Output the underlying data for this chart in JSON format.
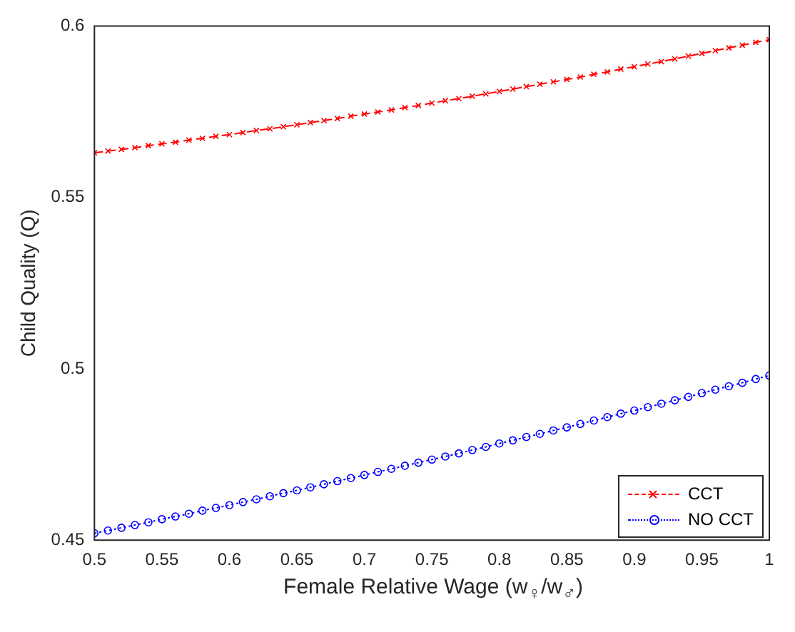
{
  "chart_data": {
    "type": "line",
    "xlabel": "Female Relative Wage (w$_{♀}$/w$_{♂}$)",
    "ylabel": "Child Quality (Q)",
    "x": [
      0.5,
      0.51,
      0.52,
      0.53,
      0.54,
      0.55,
      0.56,
      0.57,
      0.58,
      0.59,
      0.6,
      0.61,
      0.62,
      0.63,
      0.64,
      0.65,
      0.66,
      0.67,
      0.68,
      0.69,
      0.7,
      0.71,
      0.72,
      0.73,
      0.74,
      0.75,
      0.76,
      0.77,
      0.78,
      0.79,
      0.8,
      0.81,
      0.82,
      0.83,
      0.84,
      0.85,
      0.86,
      0.87,
      0.88,
      0.89,
      0.9,
      0.91,
      0.92,
      0.93,
      0.94,
      0.95,
      0.96,
      0.97,
      0.98,
      0.99,
      1
    ],
    "series": [
      {
        "name": "CCT",
        "color": "#ff0000",
        "marker": "cross",
        "line_style": "dashed",
        "values": [
          0.563,
          0.5635,
          0.564,
          0.5645,
          0.5651,
          0.5656,
          0.5661,
          0.5667,
          0.5672,
          0.5678,
          0.5683,
          0.5689,
          0.5695,
          0.57,
          0.5706,
          0.5712,
          0.5718,
          0.5724,
          0.573,
          0.5737,
          0.5743,
          0.5749,
          0.5755,
          0.5762,
          0.5768,
          0.5775,
          0.5782,
          0.5788,
          0.5795,
          0.5802,
          0.5809,
          0.5816,
          0.5823,
          0.583,
          0.5837,
          0.5844,
          0.5851,
          0.5859,
          0.5866,
          0.5874,
          0.5881,
          0.5889,
          0.5896,
          0.5904,
          0.5912,
          0.592,
          0.5928,
          0.5936,
          0.5944,
          0.5952,
          0.596
        ]
      },
      {
        "name": "NO CCT",
        "color": "#0000ff",
        "marker": "circle",
        "line_style": "dotted",
        "values": [
          0.452,
          0.4528,
          0.4536,
          0.4544,
          0.4552,
          0.4561,
          0.4569,
          0.4577,
          0.4586,
          0.4594,
          0.4602,
          0.4611,
          0.4619,
          0.4628,
          0.4637,
          0.4645,
          0.4654,
          0.4663,
          0.4672,
          0.4681,
          0.469,
          0.4699,
          0.4708,
          0.4717,
          0.4726,
          0.4735,
          0.4744,
          0.4753,
          0.4763,
          0.4772,
          0.4782,
          0.4791,
          0.4801,
          0.481,
          0.482,
          0.4829,
          0.4839,
          0.4849,
          0.4859,
          0.4869,
          0.4878,
          0.4888,
          0.4898,
          0.4908,
          0.4918,
          0.4929,
          0.4939,
          0.4949,
          0.4959,
          0.497,
          0.498
        ]
      }
    ],
    "xlim": [
      0.5,
      1
    ],
    "xticks": [
      0.5,
      0.55,
      0.6,
      0.65,
      0.7,
      0.75,
      0.8,
      0.85,
      0.9,
      0.95,
      1
    ],
    "ylim": [
      0.45,
      0.6
    ],
    "yticks": [
      0.45,
      0.5,
      0.55,
      0.6
    ],
    "legend": "bottom right"
  }
}
